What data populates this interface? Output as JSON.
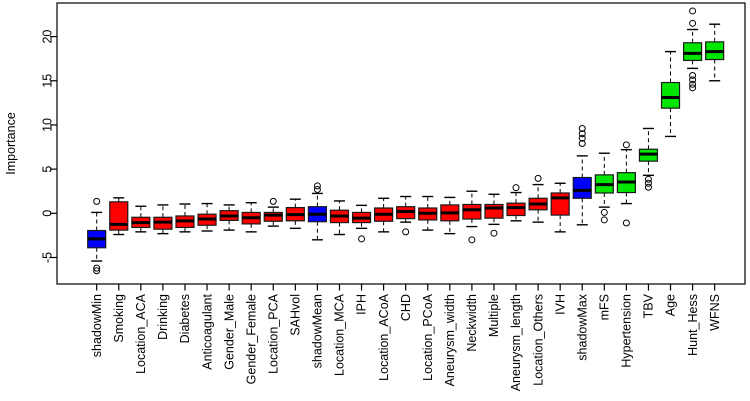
{
  "page": {
    "background": "#ffffff"
  },
  "chart_data": {
    "type": "boxplot",
    "title": "",
    "xlabel": "",
    "ylabel": "Importance",
    "yticks": [
      -5,
      0,
      5,
      10,
      15,
      20
    ],
    "ylim": [
      -8,
      23.8
    ],
    "grid": false,
    "legend": "none",
    "frame": true,
    "group_colors": {
      "shadow": "#0000ff",
      "rejected": "#ff0000",
      "confirmed": "#00e600"
    },
    "style_colors": {
      "box_border": "#1a1a1a",
      "median": "#000000",
      "whisker": "#000000",
      "outlier": "#000000",
      "axis": "#000000"
    },
    "boxes": [
      {
        "label": "shadowMin",
        "group": "shadow",
        "low": -5.4,
        "q1": -3.9,
        "median": -2.9,
        "q3": -1.95,
        "high": 0.1,
        "outliers": [
          1.35,
          -6.2,
          -6.5
        ]
      },
      {
        "label": "Smoking",
        "group": "rejected",
        "low": -2.4,
        "q1": -1.9,
        "median": -1.25,
        "q3": 1.3,
        "high": 1.75,
        "outliers": []
      },
      {
        "label": "Location_ACA",
        "group": "rejected",
        "low": -2.1,
        "q1": -1.6,
        "median": -1.05,
        "q3": -0.45,
        "high": 0.8,
        "outliers": []
      },
      {
        "label": "Drinking",
        "group": "rejected",
        "low": -2.3,
        "q1": -1.8,
        "median": -1.0,
        "q3": -0.45,
        "high": 0.95,
        "outliers": []
      },
      {
        "label": "Diabetes",
        "group": "rejected",
        "low": -2.1,
        "q1": -1.6,
        "median": -0.85,
        "q3": -0.3,
        "high": 1.05,
        "outliers": []
      },
      {
        "label": "Anticoagulant",
        "group": "rejected",
        "low": -2.0,
        "q1": -1.35,
        "median": -0.65,
        "q3": -0.1,
        "high": 1.1,
        "outliers": []
      },
      {
        "label": "Gender_Male",
        "group": "rejected",
        "low": -1.9,
        "q1": -0.8,
        "median": -0.3,
        "q3": 0.3,
        "high": 0.95,
        "outliers": []
      },
      {
        "label": "Gender_Female",
        "group": "rejected",
        "low": -2.1,
        "q1": -1.2,
        "median": -0.5,
        "q3": 0.1,
        "high": 1.2,
        "outliers": []
      },
      {
        "label": "Location_PCA",
        "group": "rejected",
        "low": -1.45,
        "q1": -0.9,
        "median": -0.2,
        "q3": 0.1,
        "high": 0.7,
        "outliers": [
          1.35
        ]
      },
      {
        "label": "SAHvol",
        "group": "rejected",
        "low": -1.7,
        "q1": -0.85,
        "median": -0.15,
        "q3": 0.65,
        "high": 1.6,
        "outliers": []
      },
      {
        "label": "shadowMean",
        "group": "shadow",
        "low": -3.0,
        "q1": -0.95,
        "median": -0.1,
        "q3": 0.75,
        "high": 2.25,
        "outliers": [
          2.7,
          3.1
        ]
      },
      {
        "label": "Location_MCA",
        "group": "rejected",
        "low": -2.4,
        "q1": -1.05,
        "median": -0.3,
        "q3": 0.35,
        "high": 1.4,
        "outliers": []
      },
      {
        "label": "IPH",
        "group": "rejected",
        "low": -1.7,
        "q1": -1.05,
        "median": -0.55,
        "q3": 0.1,
        "high": 0.9,
        "outliers": [
          -2.9
        ]
      },
      {
        "label": "Location_ACoA",
        "group": "rejected",
        "low": -2.1,
        "q1": -0.9,
        "median": -0.1,
        "q3": 0.6,
        "high": 1.7,
        "outliers": []
      },
      {
        "label": "CHD",
        "group": "rejected",
        "low": -1.0,
        "q1": -0.6,
        "median": 0.2,
        "q3": 0.75,
        "high": 1.9,
        "outliers": [
          -2.1
        ]
      },
      {
        "label": "Location_PCoA",
        "group": "rejected",
        "low": -1.9,
        "q1": -0.75,
        "median": 0.0,
        "q3": 0.6,
        "high": 1.9,
        "outliers": []
      },
      {
        "label": "Aneurysm_width",
        "group": "rejected",
        "low": -2.3,
        "q1": -0.85,
        "median": 0.05,
        "q3": 0.95,
        "high": 1.8,
        "outliers": []
      },
      {
        "label": "Neckwidth",
        "group": "rejected",
        "low": -1.5,
        "q1": -0.65,
        "median": 0.4,
        "q3": 1.0,
        "high": 2.5,
        "outliers": [
          -3.0
        ]
      },
      {
        "label": "Multiple",
        "group": "rejected",
        "low": -1.25,
        "q1": -0.55,
        "median": 0.6,
        "q3": 1.0,
        "high": 2.15,
        "outliers": [
          -2.25
        ]
      },
      {
        "label": "Aneurysm_length",
        "group": "rejected",
        "low": -0.85,
        "q1": -0.25,
        "median": 0.65,
        "q3": 1.15,
        "high": 2.35,
        "outliers": [
          2.9
        ]
      },
      {
        "label": "Location_Others",
        "group": "rejected",
        "low": -1.0,
        "q1": 0.4,
        "median": 1.05,
        "q3": 1.7,
        "high": 3.25,
        "outliers": [
          3.95
        ]
      },
      {
        "label": "IVH",
        "group": "rejected",
        "low": -2.1,
        "q1": -0.2,
        "median": 1.75,
        "q3": 2.3,
        "high": 3.4,
        "outliers": []
      },
      {
        "label": "shadowMax",
        "group": "shadow",
        "low": -1.3,
        "q1": 1.7,
        "median": 2.6,
        "q3": 4.05,
        "high": 6.5,
        "outliers": [
          7.9,
          8.5,
          9.0,
          9.6
        ]
      },
      {
        "label": "mFS",
        "group": "confirmed",
        "low": 0.7,
        "q1": 2.3,
        "median": 3.25,
        "q3": 4.35,
        "high": 6.8,
        "outliers": [
          0.1,
          -0.75
        ]
      },
      {
        "label": "Hypertension",
        "group": "confirmed",
        "low": 1.1,
        "q1": 2.35,
        "median": 3.55,
        "q3": 4.6,
        "high": 7.2,
        "outliers": [
          7.75,
          -1.1
        ]
      },
      {
        "label": "TBV",
        "group": "confirmed",
        "low": 4.3,
        "q1": 5.9,
        "median": 6.7,
        "q3": 7.25,
        "high": 9.6,
        "outliers": [
          3.85,
          3.4,
          2.95
        ]
      },
      {
        "label": "Age",
        "group": "confirmed",
        "low": 8.7,
        "q1": 11.9,
        "median": 13.1,
        "q3": 14.8,
        "high": 18.3,
        "outliers": []
      },
      {
        "label": "Hunt_Hess",
        "group": "confirmed",
        "low": 16.4,
        "q1": 17.3,
        "median": 18.1,
        "q3": 19.3,
        "high": 20.8,
        "outliers": [
          22.9,
          21.5,
          15.6,
          15.1,
          14.6,
          14.2
        ]
      },
      {
        "label": "WFNS",
        "group": "confirmed",
        "low": 15.0,
        "q1": 17.4,
        "median": 18.3,
        "q3": 19.4,
        "high": 21.4,
        "outliers": []
      }
    ]
  }
}
